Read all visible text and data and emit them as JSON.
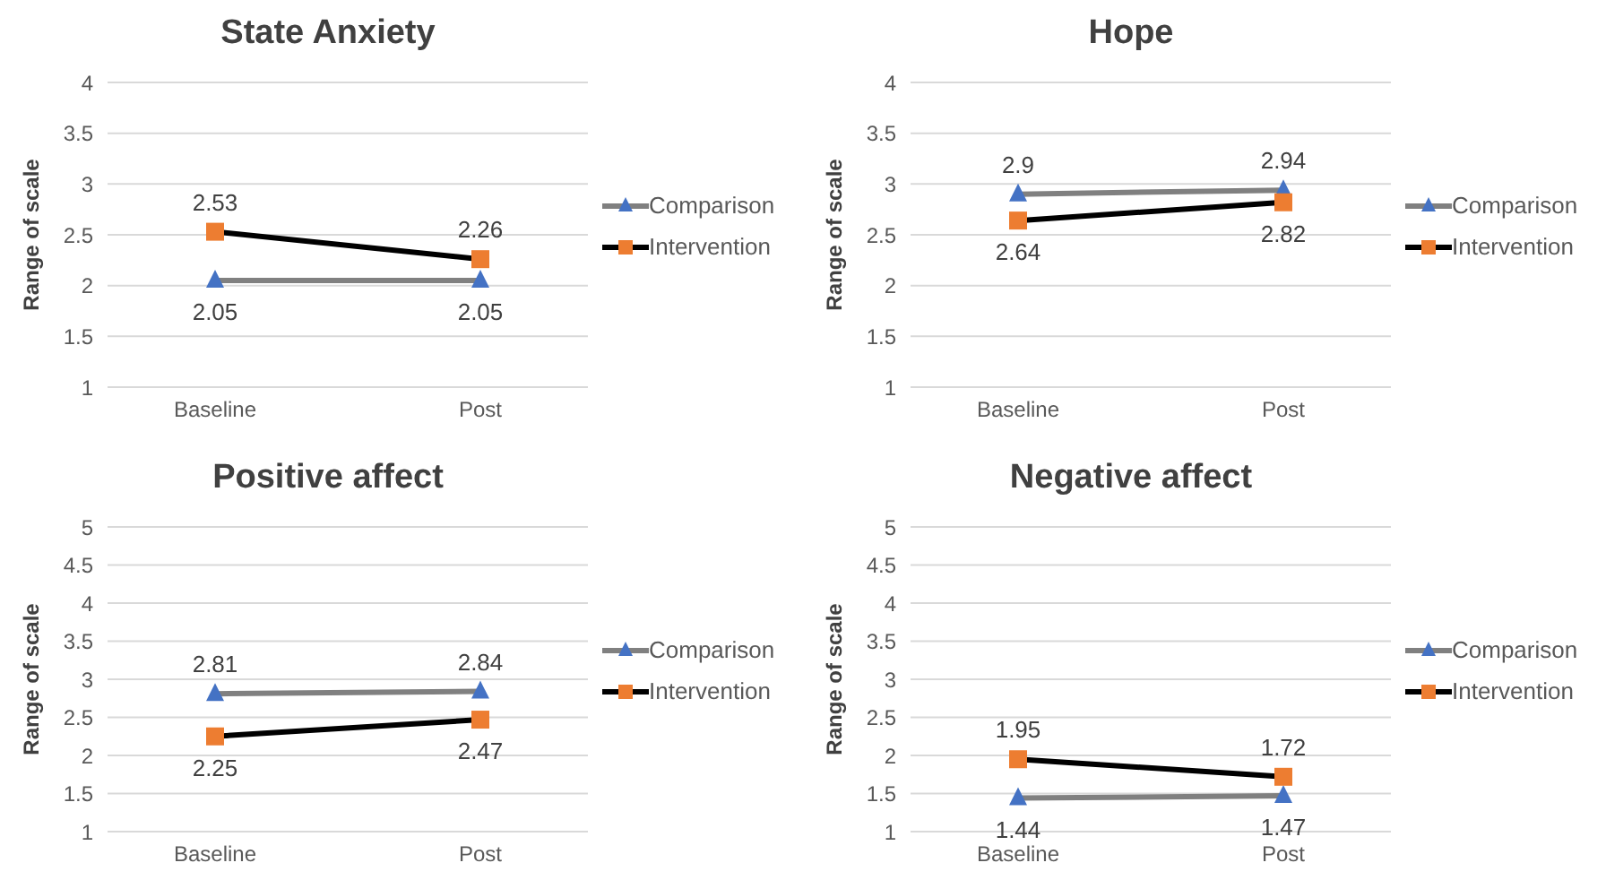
{
  "chart_data": [
    {
      "type": "line",
      "title": "State Anxiety",
      "ylabel": "Range of scale",
      "categories": [
        "Baseline",
        "Post"
      ],
      "ylim": [
        1,
        4
      ],
      "yticks": [
        1,
        1.5,
        2,
        2.5,
        3,
        3.5,
        4
      ],
      "grid": "y",
      "legend": "right",
      "data_labels": true,
      "series": [
        {
          "name": "Comparison",
          "color": "#808080",
          "colors": [
            "#4472c4",
            "#4472c4"
          ],
          "marker": "triangle",
          "values": [
            2.05,
            2.05
          ]
        },
        {
          "name": "Intervention",
          "color": "#000000",
          "colors": [
            "#ed7d31",
            "#ed7d31"
          ],
          "marker": "square",
          "values": [
            2.53,
            2.26
          ]
        }
      ]
    },
    {
      "type": "line",
      "title": "Hope",
      "ylabel": "Range of scale",
      "categories": [
        "Baseline",
        "Post"
      ],
      "ylim": [
        1,
        4
      ],
      "yticks": [
        1,
        1.5,
        2,
        2.5,
        3,
        3.5,
        4
      ],
      "grid": "y",
      "legend": "right",
      "data_labels": true,
      "series": [
        {
          "name": "Comparison",
          "color": "#808080",
          "colors": [
            "#4472c4",
            "#4472c4"
          ],
          "marker": "triangle",
          "values": [
            2.9,
            2.94
          ]
        },
        {
          "name": "Intervention",
          "color": "#000000",
          "colors": [
            "#ed7d31",
            "#ed7d31"
          ],
          "marker": "square",
          "values": [
            2.64,
            2.82
          ]
        }
      ]
    },
    {
      "type": "line",
      "title": "Positive affect",
      "ylabel": "Range of scale",
      "categories": [
        "Baseline",
        "Post"
      ],
      "ylim": [
        1,
        5
      ],
      "yticks": [
        1,
        1.5,
        2,
        2.5,
        3,
        3.5,
        4,
        4.5,
        5
      ],
      "grid": "y",
      "legend": "right",
      "data_labels": true,
      "series": [
        {
          "name": "Comparison",
          "color": "#808080",
          "colors": [
            "#4472c4",
            "#4472c4"
          ],
          "marker": "triangle",
          "values": [
            2.81,
            2.84
          ]
        },
        {
          "name": "Intervention",
          "color": "#000000",
          "colors": [
            "#ed7d31",
            "#ed7d31"
          ],
          "marker": "square",
          "values": [
            2.25,
            2.47
          ]
        }
      ]
    },
    {
      "type": "line",
      "title": "Negative affect",
      "ylabel": "Range of scale",
      "categories": [
        "Baseline",
        "Post"
      ],
      "ylim": [
        1,
        5
      ],
      "yticks": [
        1,
        1.5,
        2,
        2.5,
        3,
        3.5,
        4,
        4.5,
        5
      ],
      "grid": "y",
      "legend": "right",
      "data_labels": true,
      "series": [
        {
          "name": "Comparison",
          "color": "#808080",
          "colors": [
            "#4472c4",
            "#4472c4"
          ],
          "marker": "triangle",
          "values": [
            1.44,
            1.47
          ]
        },
        {
          "name": "Intervention",
          "color": "#000000",
          "colors": [
            "#ed7d31",
            "#ed7d31"
          ],
          "marker": "square",
          "values": [
            1.95,
            1.72
          ]
        }
      ]
    }
  ]
}
